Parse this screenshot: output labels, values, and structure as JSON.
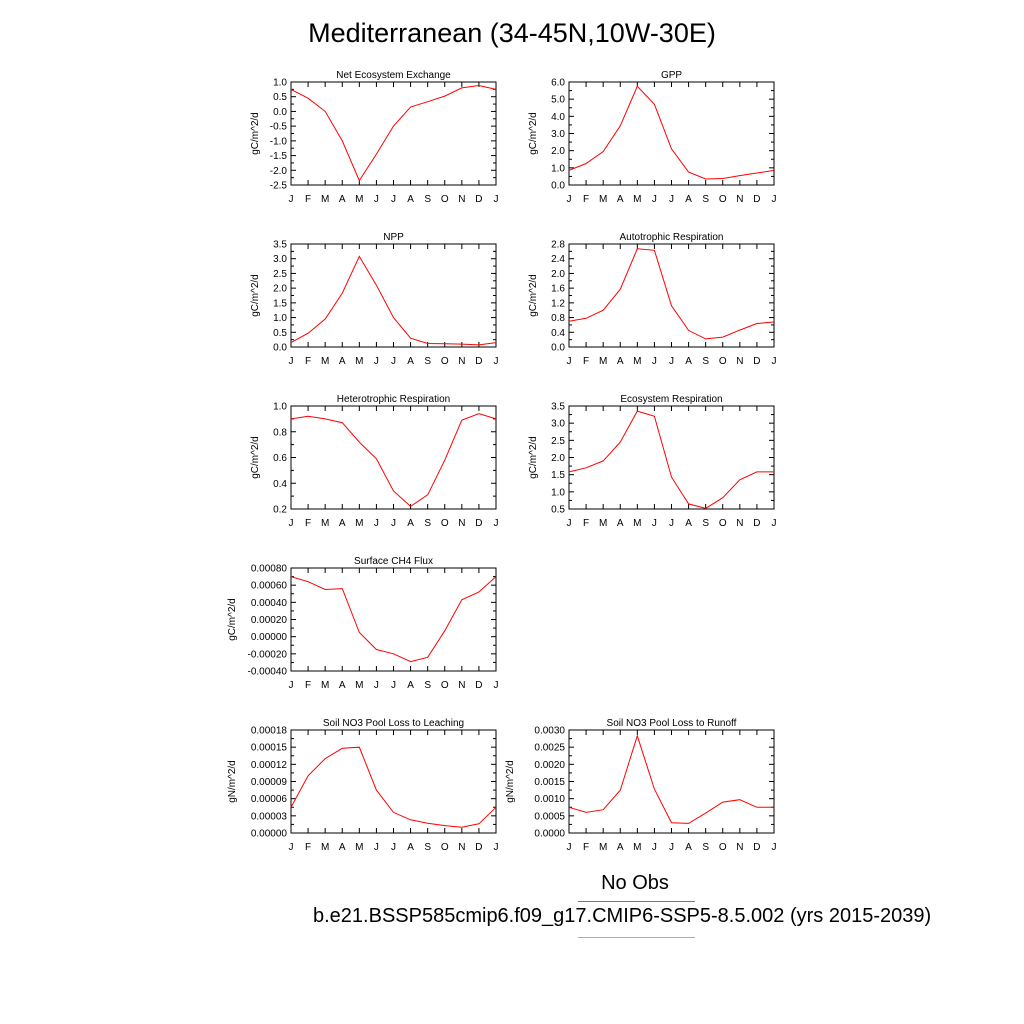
{
  "title": "Mediterranean (34-45N,10W-30E)",
  "legend": {
    "obs_label": "No Obs",
    "model_label": "b.e21.BSSP585cmip6.f09_g17.CMIP6-SSP5-8.5.002 (yrs 2015-2039)",
    "obs_color": "#6a6aee",
    "model_color": "#f09090"
  },
  "line_color": "#ff0000",
  "chart_data": [
    {
      "type": "line",
      "title": "Net Ecosystem Exchange",
      "ylabel": "gC/m^2/d",
      "x": [
        "J",
        "F",
        "M",
        "A",
        "M",
        "J",
        "J",
        "A",
        "S",
        "O",
        "N",
        "D",
        "J"
      ],
      "values": [
        0.75,
        0.45,
        0.0,
        -1.0,
        -2.35,
        -1.45,
        -0.5,
        0.15,
        0.33,
        0.52,
        0.8,
        0.88,
        0.75
      ],
      "ylim": [
        -2.5,
        1.0
      ],
      "yticks": [
        "1.0",
        "0.5",
        "0.0",
        "-0.5",
        "-1.0",
        "-1.5",
        "-2.0",
        "-2.5"
      ],
      "ytick_values": [
        1.0,
        0.5,
        0.0,
        -0.5,
        -1.0,
        -1.5,
        -2.0,
        -2.5
      ]
    },
    {
      "type": "line",
      "title": "GPP",
      "ylabel": "gC/m^2/d",
      "x": [
        "J",
        "F",
        "M",
        "A",
        "M",
        "J",
        "J",
        "A",
        "S",
        "O",
        "N",
        "D",
        "J"
      ],
      "values": [
        0.85,
        1.25,
        1.95,
        3.45,
        5.75,
        4.7,
        2.1,
        0.75,
        0.35,
        0.38,
        0.55,
        0.7,
        0.85
      ],
      "ylim": [
        0.0,
        6.0
      ],
      "yticks": [
        "6.0",
        "5.0",
        "4.0",
        "3.0",
        "2.0",
        "1.0",
        "0.0"
      ],
      "ytick_values": [
        6.0,
        5.0,
        4.0,
        3.0,
        2.0,
        1.0,
        0.0
      ]
    },
    {
      "type": "line",
      "title": "NPP",
      "ylabel": "gC/m^2/d",
      "x": [
        "J",
        "F",
        "M",
        "A",
        "M",
        "J",
        "J",
        "A",
        "S",
        "O",
        "N",
        "D",
        "J"
      ],
      "values": [
        0.15,
        0.47,
        0.95,
        1.83,
        3.08,
        2.1,
        1.0,
        0.3,
        0.12,
        0.11,
        0.1,
        0.07,
        0.15
      ],
      "ylim": [
        0.0,
        3.5
      ],
      "yticks": [
        "3.5",
        "3.0",
        "2.5",
        "2.0",
        "1.5",
        "1.0",
        "0.5",
        "0.0"
      ],
      "ytick_values": [
        3.5,
        3.0,
        2.5,
        2.0,
        1.5,
        1.0,
        0.5,
        0.0
      ]
    },
    {
      "type": "line",
      "title": "Autotrophic Respiration",
      "ylabel": "gC/m^2/d",
      "x": [
        "J",
        "F",
        "M",
        "A",
        "M",
        "J",
        "J",
        "A",
        "S",
        "O",
        "N",
        "D",
        "J"
      ],
      "values": [
        0.7,
        0.78,
        1.0,
        1.57,
        2.67,
        2.63,
        1.12,
        0.45,
        0.22,
        0.27,
        0.46,
        0.64,
        0.68
      ],
      "ylim": [
        0.0,
        2.8
      ],
      "yticks": [
        "2.8",
        "2.4",
        "2.0",
        "1.6",
        "1.2",
        "0.8",
        "0.4",
        "0.0"
      ],
      "ytick_values": [
        2.8,
        2.4,
        2.0,
        1.6,
        1.2,
        0.8,
        0.4,
        0.0
      ]
    },
    {
      "type": "line",
      "title": "Heterotrophic Respiration",
      "ylabel": "gC/m^2/d",
      "x": [
        "J",
        "F",
        "M",
        "A",
        "M",
        "J",
        "J",
        "A",
        "S",
        "O",
        "N",
        "D",
        "J"
      ],
      "values": [
        0.9,
        0.92,
        0.9,
        0.87,
        0.72,
        0.59,
        0.34,
        0.22,
        0.31,
        0.58,
        0.89,
        0.94,
        0.9
      ],
      "ylim": [
        0.2,
        1.0
      ],
      "yticks": [
        "1.0",
        "0.8",
        "0.6",
        "0.4",
        "0.2"
      ],
      "ytick_values": [
        1.0,
        0.8,
        0.6,
        0.4,
        0.2
      ]
    },
    {
      "type": "line",
      "title": "Ecosystem Respiration",
      "ylabel": "gC/m^2/d",
      "x": [
        "J",
        "F",
        "M",
        "A",
        "M",
        "J",
        "J",
        "A",
        "S",
        "O",
        "N",
        "D",
        "J"
      ],
      "values": [
        1.58,
        1.7,
        1.9,
        2.45,
        3.35,
        3.2,
        1.43,
        0.65,
        0.52,
        0.83,
        1.35,
        1.58,
        1.58
      ],
      "ylim": [
        0.5,
        3.5
      ],
      "yticks": [
        "3.5",
        "3.0",
        "2.5",
        "2.0",
        "1.5",
        "1.0",
        "0.5"
      ],
      "ytick_values": [
        3.5,
        3.0,
        2.5,
        2.0,
        1.5,
        1.0,
        0.5
      ]
    },
    {
      "type": "line",
      "title": "Surface CH4 Flux",
      "ylabel": "gC/m^2/d",
      "x": [
        "J",
        "F",
        "M",
        "A",
        "M",
        "J",
        "J",
        "A",
        "S",
        "O",
        "N",
        "D",
        "J"
      ],
      "values": [
        0.0007,
        0.00064,
        0.00055,
        0.00056,
        5e-05,
        -0.00015,
        -0.0002,
        -0.00029,
        -0.00024,
        7e-05,
        0.00043,
        0.00052,
        0.0007
      ],
      "ylim": [
        -0.0004,
        0.0008
      ],
      "yticks": [
        "0.00080",
        "0.00060",
        "0.00040",
        "0.00020",
        "0.00000",
        "-0.00020",
        "-0.00040"
      ],
      "ytick_values": [
        0.0008,
        0.0006,
        0.0004,
        0.0002,
        0.0,
        -0.0002,
        -0.0004
      ]
    },
    {
      "type": "line",
      "title": "Soil NO3 Pool Loss to Leaching",
      "ylabel": "gN/m^2/d",
      "x": [
        "J",
        "F",
        "M",
        "A",
        "M",
        "J",
        "J",
        "A",
        "S",
        "O",
        "N",
        "D",
        "J"
      ],
      "values": [
        4.5e-05,
        0.0001,
        0.00013,
        0.000148,
        0.00015,
        7.5e-05,
        3.6e-05,
        2.3e-05,
        1.7e-05,
        1.3e-05,
        1e-05,
        1.6e-05,
        4.5e-05
      ],
      "ylim": [
        0.0,
        0.00018
      ],
      "yticks": [
        "0.00018",
        "0.00015",
        "0.00012",
        "0.00009",
        "0.00006",
        "0.00003",
        "0.00000"
      ],
      "ytick_values": [
        0.00018,
        0.00015,
        0.00012,
        9e-05,
        6e-05,
        3e-05,
        0.0
      ]
    },
    {
      "type": "line",
      "title": "Soil NO3 Pool Loss to Runoff",
      "ylabel": "gN/m^2/d",
      "x": [
        "J",
        "F",
        "M",
        "A",
        "M",
        "J",
        "J",
        "A",
        "S",
        "O",
        "N",
        "D",
        "J"
      ],
      "values": [
        0.00075,
        0.0006,
        0.00068,
        0.00125,
        0.00283,
        0.00128,
        0.0003,
        0.00028,
        0.00058,
        0.0009,
        0.00097,
        0.00075,
        0.00075
      ],
      "ylim": [
        0.0,
        0.003
      ],
      "yticks": [
        "0.0030",
        "0.0025",
        "0.0020",
        "0.0015",
        "0.0010",
        "0.0005",
        "0.0000"
      ],
      "ytick_values": [
        0.003,
        0.0025,
        0.002,
        0.0015,
        0.001,
        0.0005,
        0.0
      ]
    }
  ]
}
